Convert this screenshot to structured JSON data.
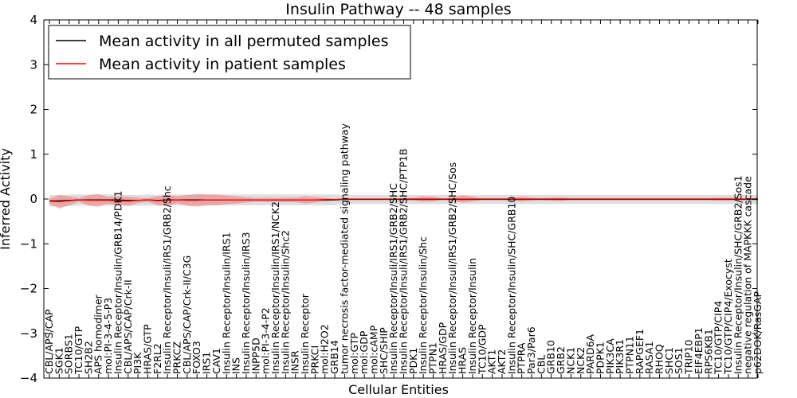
{
  "chart_data": {
    "type": "line",
    "title": "Insulin Pathway -- 48 samples",
    "xlabel": "Cellular Entities",
    "ylabel": "Inferred Activity",
    "ylim": [
      -4,
      4
    ],
    "yticks": [
      "−4",
      "−3",
      "−2",
      "−1",
      "0",
      "1",
      "2",
      "3",
      "4"
    ],
    "grid": false,
    "legend_position": "top-left",
    "categories": [
      "CBL/APS/CAP",
      "SGK1",
      "SORBS1",
      "TC10/GTP",
      "SH2B2",
      "APS homodimer",
      "mol:PI-3-4-5-P3",
      "Insulin Receptor/Insulin/GRB14/PDK1",
      "CBL/APS/CAP/Crk-II",
      "PI3K",
      "HRAS/GTP",
      "F2RL2",
      "Insulin Receptor/Insuli/IRS1/GRB2/Shc",
      "PRKCZ",
      "CBL/APS/CAP/Crk-II/C3G",
      "FOXO3",
      "IRS1",
      "CAV1",
      "Insulin Receptor/Insulin/IRS1",
      "INS",
      "Insulin Receptor/Insulin/IRS3",
      "INPP5D",
      "mol:PI-3-4-P2",
      "Insulin Receptor/Insulin/IRS1/NCK2",
      "Insulin Receptor/Insulin/Shc2",
      "INSR",
      "Insulin Receptor",
      "PRKCI",
      "mol:H2O2",
      "GRB14",
      "tumor necrosis factor-mediated signaling pathway",
      "mol:GTP",
      "mol:GDP",
      "mol:cAMP",
      "SHC/SHIP",
      "Insulin Receptor/Insuli/IRS1/GRB2/SHC",
      "Insulin Receptor/Insuli/IRS1/GRB2/SHC/PTP1B",
      "PDK1",
      "Insulin Receptor/Insulin/Shc",
      "PTPN1",
      "HRAS/GDP",
      "Insulin Receptor/Insuli/IRS1/GRB2/SHC/Sos",
      "HRAS",
      "Insulin Receptor/Insulin",
      "TC10/GDP",
      "AKT1",
      "AKT2",
      "Insulin Receptor/Insulin/SHC/GRB10",
      "PTPRA",
      "Par3/Par6",
      "CBL",
      "GRB10",
      "GRB2",
      "NCK1",
      "NCK2",
      "PARD6A",
      "PDPK1",
      "PIK3CA",
      "PIK3R1",
      "PTPN11",
      "RAPGEF1",
      "RASA1",
      "RHOQ",
      "SHC1",
      "SOS1",
      "TRIP10",
      "EIF4EBP1",
      "RPS6KB1",
      "TC10/GTP/CIP4",
      "TC10/GTP/CIP4/Exocyst",
      "Insulin Receptor/Insulin/SHC/GRB2/Sos1",
      "negative regulation of MAPKKK cascade",
      "p62DOK/RasGAP"
    ],
    "series": [
      {
        "name": "Mean activity in all permuted samples",
        "color": "#000000",
        "band_color": "#c8c8c8",
        "values": [
          -0.04,
          -0.04,
          -0.03,
          -0.02,
          -0.02,
          -0.02,
          -0.02,
          -0.02,
          -0.03,
          -0.03,
          -0.02,
          -0.03,
          -0.02,
          -0.02,
          -0.02,
          -0.02,
          -0.02,
          -0.02,
          -0.02,
          -0.02,
          -0.02,
          -0.02,
          -0.02,
          -0.02,
          -0.02,
          -0.02,
          -0.02,
          -0.02,
          -0.02,
          -0.02,
          -0.01,
          -0.01,
          -0.01,
          -0.01,
          -0.01,
          -0.01,
          -0.01,
          -0.01,
          -0.01,
          -0.01,
          -0.01,
          -0.01,
          -0.01,
          -0.01,
          -0.01,
          -0.01,
          -0.01,
          -0.01,
          -0.01,
          -0.01,
          -0.01,
          -0.01,
          -0.01,
          -0.01,
          -0.01,
          -0.01,
          -0.01,
          -0.01,
          -0.01,
          -0.01,
          -0.01,
          -0.01,
          -0.01,
          -0.01,
          -0.01,
          -0.01,
          -0.01,
          -0.01,
          -0.01,
          -0.01,
          -0.01,
          -0.01,
          -0.01
        ],
        "std": [
          0.13,
          0.13,
          0.13,
          0.12,
          0.12,
          0.12,
          0.12,
          0.12,
          0.12,
          0.12,
          0.12,
          0.12,
          0.12,
          0.12,
          0.12,
          0.12,
          0.12,
          0.12,
          0.12,
          0.12,
          0.12,
          0.12,
          0.12,
          0.12,
          0.12,
          0.12,
          0.12,
          0.12,
          0.12,
          0.12,
          0.1,
          0.1,
          0.1,
          0.1,
          0.1,
          0.1,
          0.1,
          0.1,
          0.1,
          0.1,
          0.1,
          0.1,
          0.1,
          0.1,
          0.1,
          0.1,
          0.1,
          0.1,
          0.1,
          0.1,
          0.1,
          0.1,
          0.1,
          0.1,
          0.1,
          0.1,
          0.1,
          0.1,
          0.1,
          0.1,
          0.1,
          0.1,
          0.1,
          0.1,
          0.1,
          0.1,
          0.1,
          0.1,
          0.1,
          0.1,
          0.1,
          0.1,
          0.1
        ]
      },
      {
        "name": "Mean activity in patient samples",
        "color": "#ff0000",
        "band_color": "#f08080",
        "values": [
          -0.05,
          -0.06,
          -0.04,
          -0.02,
          -0.03,
          -0.03,
          -0.03,
          -0.04,
          -0.05,
          -0.03,
          -0.02,
          -0.04,
          -0.03,
          -0.02,
          -0.03,
          -0.03,
          -0.02,
          -0.02,
          -0.02,
          -0.02,
          -0.02,
          -0.02,
          -0.02,
          -0.02,
          -0.02,
          -0.02,
          -0.02,
          -0.02,
          -0.01,
          -0.01,
          0.0,
          0.0,
          0.0,
          0.0,
          0.0,
          0.0,
          0.0,
          0.0,
          0.0,
          0.0,
          0.0,
          0.0,
          0.0,
          0.0,
          0.0,
          0.0,
          0.0,
          0.0,
          0.0,
          0.0,
          0.0,
          0.0,
          0.0,
          0.0,
          0.0,
          0.0,
          0.0,
          0.0,
          0.0,
          0.0,
          0.0,
          0.0,
          0.0,
          0.0,
          0.0,
          0.0,
          0.0,
          0.0,
          0.0,
          0.0,
          0.0,
          0.0,
          0.0
        ],
        "std": [
          0.06,
          0.15,
          0.1,
          0.04,
          0.12,
          0.14,
          0.08,
          0.1,
          0.1,
          0.06,
          0.04,
          0.1,
          0.12,
          0.08,
          0.12,
          0.14,
          0.12,
          0.12,
          0.1,
          0.08,
          0.06,
          0.04,
          0.05,
          0.04,
          0.05,
          0.05,
          0.08,
          0.06,
          0.04,
          0.02,
          0.01,
          0.01,
          0.01,
          0.01,
          0.01,
          0.01,
          0.02,
          0.03,
          0.06,
          0.05,
          0.01,
          0.04,
          0.08,
          0.05,
          0.02,
          0.02,
          0.02,
          0.03,
          0.05,
          0.03,
          0.02,
          0.03,
          0.04,
          0.02,
          0.02,
          0.02,
          0.02,
          0.02,
          0.02,
          0.02,
          0.02,
          0.02,
          0.02,
          0.02,
          0.02,
          0.02,
          0.02,
          0.02,
          0.03,
          0.03,
          0.02,
          0.02,
          0.02
        ]
      }
    ]
  }
}
